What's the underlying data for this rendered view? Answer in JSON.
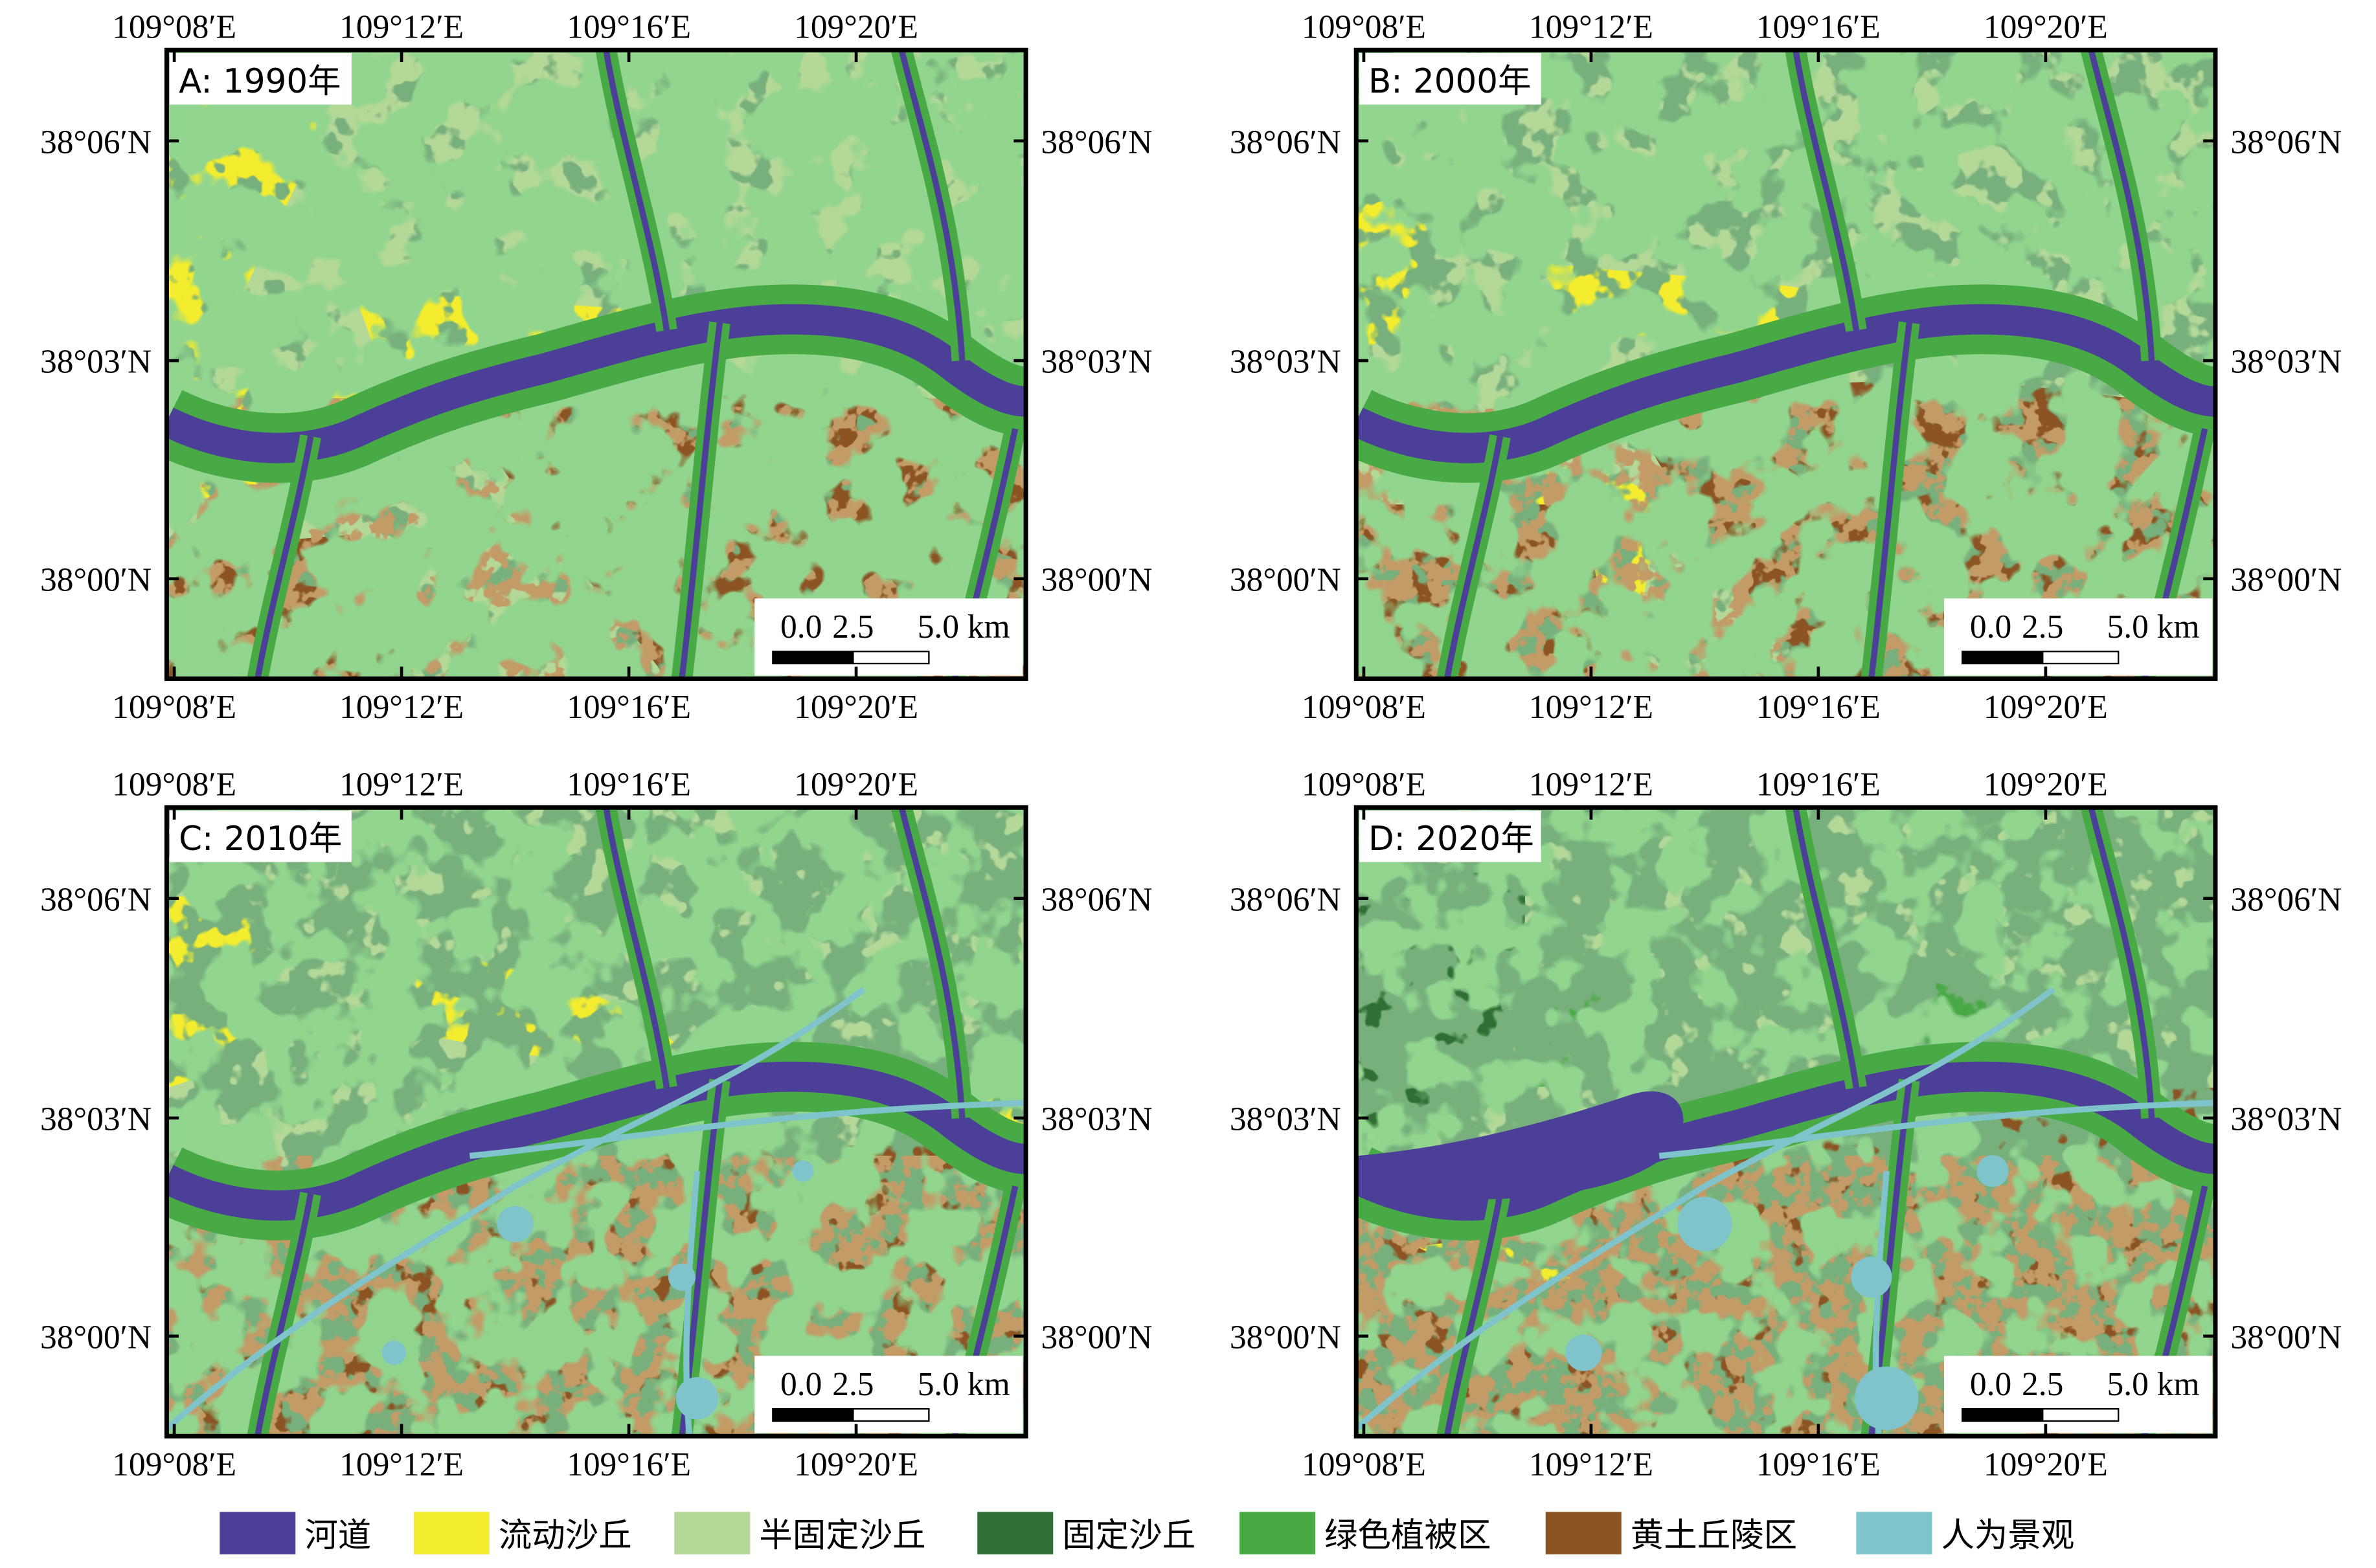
{
  "panels": [
    {
      "label": "A: 1990年",
      "scale_bar": [
        "0.0",
        "2.5",
        "5.0 km"
      ]
    },
    {
      "label": "B: 2000年",
      "scale_bar": [
        "0.0",
        "2.5",
        "5.0 km"
      ]
    },
    {
      "label": "C: 2010年",
      "scale_bar": [
        "0.0",
        "2.5",
        "5.0 km"
      ]
    },
    {
      "label": "D: 2020年",
      "scale_bar": [
        "0.0",
        "2.5",
        "5.0 km"
      ]
    }
  ],
  "lon_labels": [
    "109°08′E",
    "109°12′E",
    "109°16′E",
    "109°20′E"
  ],
  "lat_labels": [
    "38°06′N",
    "38°03′N",
    "38°00′N"
  ],
  "legend": [
    {
      "name": "河道",
      "color": "#4b3f97"
    },
    {
      "name": "流动沙丘",
      "color": "#f3ec2f"
    },
    {
      "name": "半固定沙丘",
      "color": "#b4d898"
    },
    {
      "name": "固定沙丘",
      "color": "#2f6f33"
    },
    {
      "name": "绿色植被区",
      "color": "#48aa45"
    },
    {
      "name": "黄土丘陵区",
      "color": "#8b5422"
    },
    {
      "name": "人为景观",
      "color": "#7fc4cb"
    }
  ]
}
